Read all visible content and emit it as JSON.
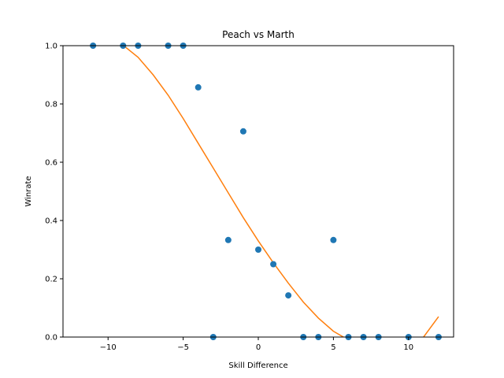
{
  "chart_data": {
    "type": "scatter",
    "title": "Peach vs Marth",
    "xlabel": "Skill Difference",
    "ylabel": "Winrate",
    "xlim": [
      -13,
      13
    ],
    "ylim": [
      0,
      1
    ],
    "xticks": [
      -10,
      -5,
      0,
      5,
      10
    ],
    "xtick_labels": [
      "−10",
      "−5",
      "0",
      "5",
      "10"
    ],
    "yticks": [
      0,
      0.2,
      0.4,
      0.6,
      0.8,
      1.0
    ],
    "ytick_labels": [
      "0.0",
      "0.2",
      "0.4",
      "0.6",
      "0.8",
      "1.0"
    ],
    "grid": false,
    "legend": "none",
    "series": [
      {
        "kind": "scatter",
        "color": "#1f77b4",
        "x": [
          -11,
          -9,
          -8,
          -6,
          -5,
          -4,
          -3,
          -2,
          -1,
          0,
          1,
          2,
          3,
          4,
          5,
          6,
          7,
          8,
          10,
          12
        ],
        "y": [
          1.0,
          1.0,
          1.0,
          1.0,
          1.0,
          0.857,
          0.0,
          0.333,
          0.706,
          0.3,
          0.25,
          0.143,
          0.0,
          0.0,
          0.333,
          0.0,
          0.0,
          0.0,
          0.0,
          0.0
        ]
      },
      {
        "kind": "line",
        "color": "#ff7f0e",
        "x": [
          -9.2,
          -8,
          -7,
          -6,
          -5,
          -4,
          -3,
          -2,
          -1,
          0,
          1,
          2,
          3,
          4,
          5,
          6,
          7,
          8,
          9,
          10,
          11,
          12
        ],
        "y": [
          1.01,
          0.96,
          0.9,
          0.83,
          0.75,
          0.665,
          0.58,
          0.495,
          0.41,
          0.33,
          0.255,
          0.185,
          0.12,
          0.065,
          0.02,
          -0.01,
          -0.035,
          -0.05,
          -0.055,
          -0.04,
          0.0,
          0.07
        ]
      }
    ]
  }
}
